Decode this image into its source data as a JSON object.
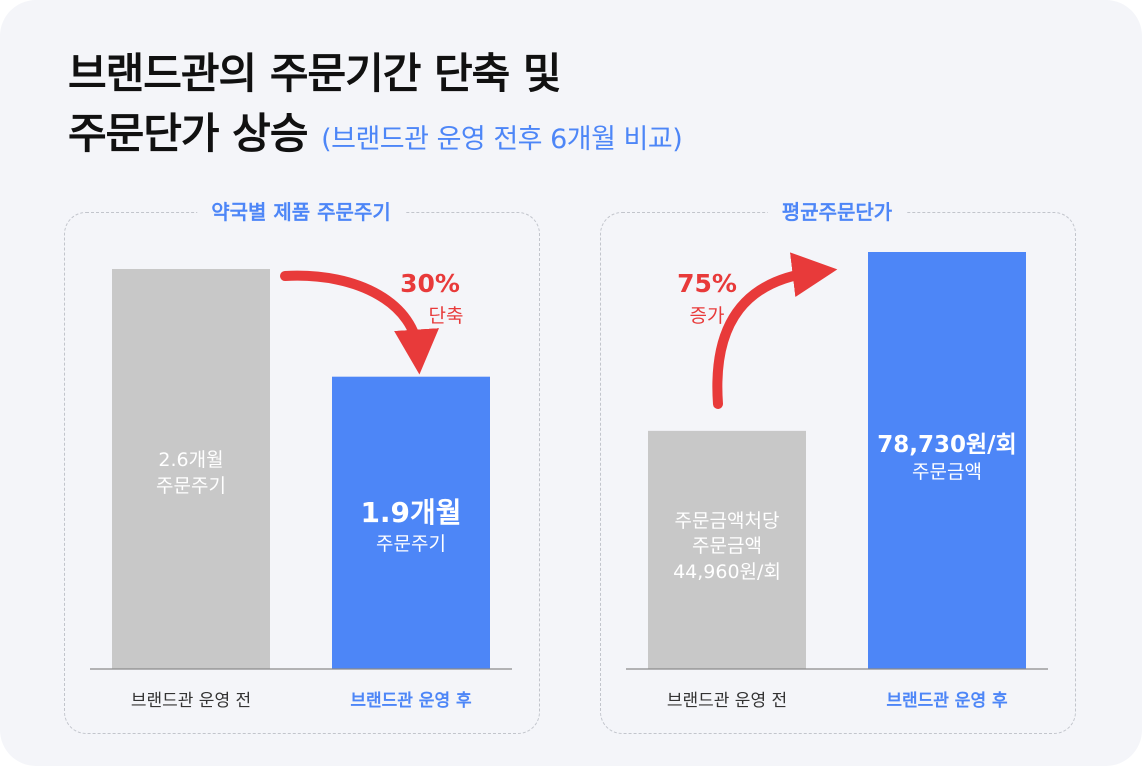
{
  "header": {
    "title_line1": "브랜드관의 주문기간 단축 및",
    "title_line2": "주문단가 상승",
    "subtitle": "(브랜드관 운영 전후 6개월 비교)"
  },
  "colors": {
    "before_bar": "#c8c8c8",
    "after_bar": "#4d86f7",
    "arrow": "#e83a3a",
    "accent_text": "#4d86f7",
    "baseline": "#8a8a8a"
  },
  "chart_data": [
    {
      "type": "bar",
      "title": "약국별 제품 주문주기",
      "categories": [
        "브랜드관 운영 전",
        "브랜드관 운영 후"
      ],
      "values": [
        2.6,
        1.9
      ],
      "ylim": [
        0,
        2.6
      ],
      "bar_labels": [
        {
          "value": "2.6개월",
          "caption": "주문주기"
        },
        {
          "value": "1.9개월",
          "caption": "주문주기"
        }
      ],
      "annotation": {
        "value": "30%",
        "caption": "단축",
        "direction": "down"
      }
    },
    {
      "type": "bar",
      "title": "평균주문단가",
      "categories": [
        "브랜드관 운영 전",
        "브랜드관 운영 후"
      ],
      "values": [
        44960,
        78730
      ],
      "ylim": [
        0,
        78730
      ],
      "bar_labels": [
        {
          "prefix": "주문금액처당",
          "caption": "주문금액",
          "value": "44,960원/회"
        },
        {
          "value": "78,730원/회",
          "caption": "주문금액"
        }
      ],
      "annotation": {
        "value": "75%",
        "caption": "증가",
        "direction": "up"
      }
    }
  ]
}
